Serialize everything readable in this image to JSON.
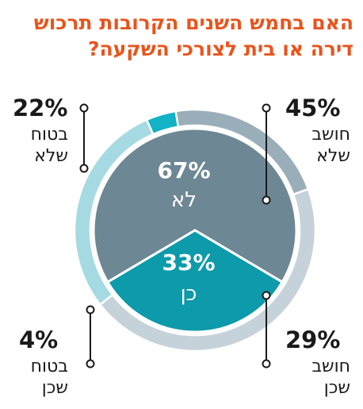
{
  "title": {
    "line1": "האם בחמש השנים הקרובות תרכוש",
    "line2": "דירה או בית לצורכי השקעה?"
  },
  "chart_data": {
    "type": "pie",
    "title": "האם בחמש השנים הקרובות תרכוש דירה או בית לצורכי השקעה?",
    "inner": [
      {
        "label": "לא",
        "pct_label": "67%",
        "value": 67,
        "color": "#6e8795"
      },
      {
        "label": "כן",
        "pct_label": "33%",
        "value": 33,
        "color": "#0d9aaa"
      }
    ],
    "outer": [
      {
        "line1": "חושב",
        "line2": "שלא",
        "pct_label": "45%",
        "value": 45,
        "color": "#c6d2da"
      },
      {
        "line1": "חושב",
        "line2": "שכן",
        "pct_label": "29%",
        "value": 29,
        "color": "#a6dae2"
      },
      {
        "line1": "בטוח",
        "line2": "שכן",
        "pct_label": "4%",
        "value": 4,
        "color": "#13b2c6"
      },
      {
        "line1": "בטוח",
        "line2": "שלא",
        "pct_label": "22%",
        "value": 22,
        "color": "#9aaeba"
      }
    ]
  }
}
